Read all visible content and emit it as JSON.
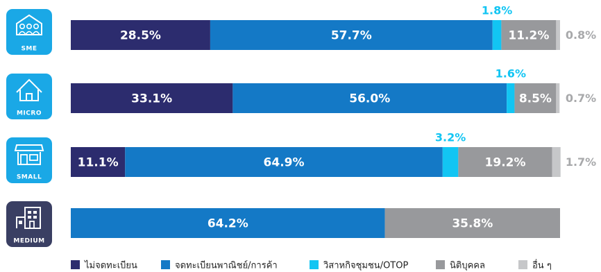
{
  "chart_data": {
    "type": "bar",
    "orientation": "horizontal",
    "stacked": true,
    "categories": [
      "SME",
      "MICRO",
      "SMALL",
      "MEDIUM"
    ],
    "category_icons": [
      "people-building-icon",
      "house-icon",
      "storefront-icon",
      "office-building-icon"
    ],
    "series": [
      {
        "name": "ไม่จดทะเบียน",
        "color": "#2c2c6e",
        "values": [
          28.5,
          33.1,
          11.1,
          null
        ],
        "labels": [
          "28.5%",
          "33.1%",
          "11.1%",
          null
        ]
      },
      {
        "name": "จดทะเบียนพาณิชย์/การค้า",
        "color": "#1479c6",
        "values": [
          57.7,
          56.0,
          64.9,
          64.2
        ],
        "labels": [
          "57.7%",
          "56.0%",
          "64.9%",
          "64.2%"
        ]
      },
      {
        "name": "วิสาหกิจชุมชน/OTOP",
        "color": "#12c5f3",
        "values": [
          1.8,
          1.6,
          3.2,
          null
        ],
        "labels": [
          "1.8%",
          "1.6%",
          "3.2%",
          null
        ]
      },
      {
        "name": "นิติบุคคล",
        "color": "#98999c",
        "values": [
          11.2,
          8.5,
          19.2,
          35.8
        ],
        "labels": [
          "11.2%",
          "8.5%",
          "19.2%",
          "35.8%"
        ]
      },
      {
        "name": "อื่น ๆ",
        "color": "#c6c7c9",
        "values": [
          0.8,
          0.7,
          1.7,
          null
        ],
        "labels": [
          "0.8%",
          "0.7%",
          "1.7%",
          null
        ]
      }
    ],
    "xlim": [
      0,
      100
    ],
    "legend_position": "bottom",
    "grid": false,
    "badge_color": "#1aa8e6",
    "badge_dark_color": "#3a3f63"
  }
}
